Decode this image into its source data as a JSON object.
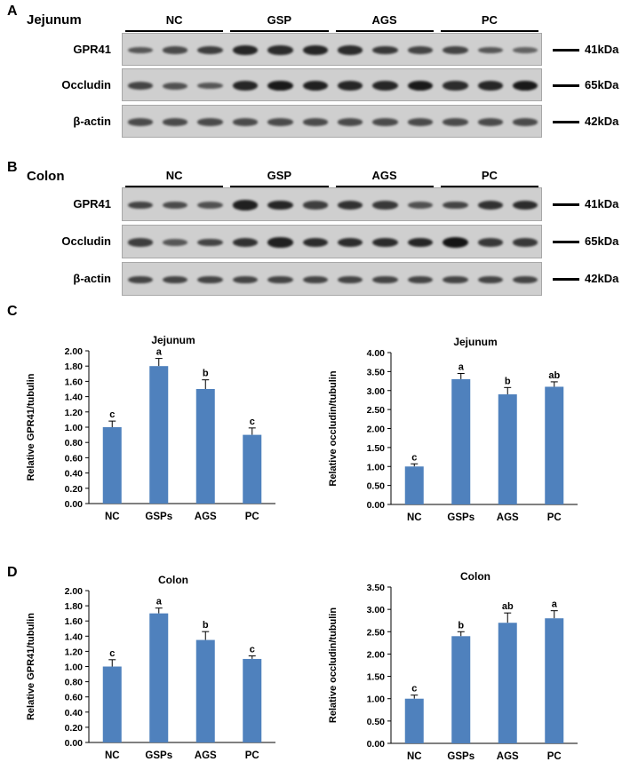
{
  "panels": {
    "A": {
      "letter": "A",
      "tissue": "Jejunum"
    },
    "B": {
      "letter": "B",
      "tissue": "Colon"
    },
    "C": {
      "letter": "C"
    },
    "D": {
      "letter": "D"
    }
  },
  "blot_groups": [
    "NC",
    "GSP",
    "AGS",
    "PC"
  ],
  "blot_rows": [
    {
      "protein": "GPR41",
      "marker": "41kDa"
    },
    {
      "protein": "Occludin",
      "marker": "65kDa"
    },
    {
      "protein": "β-actin",
      "marker": "42kDa"
    }
  ],
  "band_intensity": {
    "A": [
      [
        0.45,
        0.55,
        0.65,
        0.85,
        0.8,
        0.85,
        0.8,
        0.7,
        0.6,
        0.6,
        0.45,
        0.35
      ],
      [
        0.6,
        0.5,
        0.45,
        0.85,
        0.95,
        0.9,
        0.85,
        0.85,
        0.95,
        0.8,
        0.85,
        0.95
      ],
      [
        0.55,
        0.55,
        0.55,
        0.55,
        0.55,
        0.55,
        0.55,
        0.55,
        0.55,
        0.55,
        0.55,
        0.55
      ]
    ],
    "B": [
      [
        0.6,
        0.55,
        0.5,
        0.9,
        0.85,
        0.65,
        0.75,
        0.7,
        0.5,
        0.6,
        0.75,
        0.8
      ],
      [
        0.65,
        0.45,
        0.6,
        0.75,
        0.9,
        0.8,
        0.8,
        0.8,
        0.85,
        1.0,
        0.7,
        0.7
      ],
      [
        0.6,
        0.6,
        0.6,
        0.6,
        0.6,
        0.6,
        0.6,
        0.6,
        0.6,
        0.6,
        0.6,
        0.6
      ]
    ]
  },
  "chart_data": [
    {
      "type": "bar",
      "title": "Jejunum",
      "ylabel": "Relative GPR41/tubulin",
      "categories": [
        "NC",
        "GSPs",
        "AGS",
        "PC"
      ],
      "values": [
        1.0,
        1.8,
        1.5,
        0.9
      ],
      "errors": [
        0.08,
        0.1,
        0.12,
        0.09
      ],
      "letters": [
        "c",
        "a",
        "b",
        "c"
      ],
      "ylim": [
        0,
        2.0
      ],
      "yticks": [
        "0.00",
        "0.20",
        "0.40",
        "0.60",
        "0.80",
        "1.00",
        "1.20",
        "1.40",
        "1.60",
        "1.80",
        "2.00"
      ],
      "bar_color": "#4f81bd"
    },
    {
      "type": "bar",
      "title": "Jejunum",
      "ylabel": "Relative occludin/tubulin",
      "categories": [
        "NC",
        "GSPs",
        "AGS",
        "PC"
      ],
      "values": [
        1.0,
        3.3,
        2.9,
        3.1
      ],
      "errors": [
        0.07,
        0.15,
        0.18,
        0.13
      ],
      "letters": [
        "c",
        "a",
        "b",
        "ab"
      ],
      "ylim": [
        0,
        4.0
      ],
      "yticks": [
        "0.00",
        "0.50",
        "1.00",
        "1.50",
        "2.00",
        "2.50",
        "3.00",
        "3.50",
        "4.00"
      ],
      "bar_color": "#4f81bd"
    },
    {
      "type": "bar",
      "title": "Colon",
      "ylabel": "Relative GPR41/tubulin",
      "categories": [
        "NC",
        "GSPs",
        "AGS",
        "PC"
      ],
      "values": [
        1.0,
        1.7,
        1.35,
        1.1
      ],
      "errors": [
        0.09,
        0.07,
        0.11,
        0.04
      ],
      "letters": [
        "c",
        "a",
        "b",
        "c"
      ],
      "ylim": [
        0,
        2.0
      ],
      "yticks": [
        "0.00",
        "0.20",
        "0.40",
        "0.60",
        "0.80",
        "1.00",
        "1.20",
        "1.40",
        "1.60",
        "1.80",
        "2.00"
      ],
      "bar_color": "#4f81bd"
    },
    {
      "type": "bar",
      "title": "Colon",
      "ylabel": "Relative occludin/tubulin",
      "categories": [
        "NC",
        "GSPs",
        "AGS",
        "PC"
      ],
      "values": [
        1.0,
        2.4,
        2.7,
        2.8
      ],
      "errors": [
        0.08,
        0.1,
        0.22,
        0.17
      ],
      "letters": [
        "c",
        "b",
        "ab",
        "a"
      ],
      "ylim": [
        0,
        3.5
      ],
      "yticks": [
        "0.00",
        "0.50",
        "1.00",
        "1.50",
        "2.00",
        "2.50",
        "3.00",
        "3.50"
      ],
      "bar_color": "#4f81bd"
    }
  ]
}
